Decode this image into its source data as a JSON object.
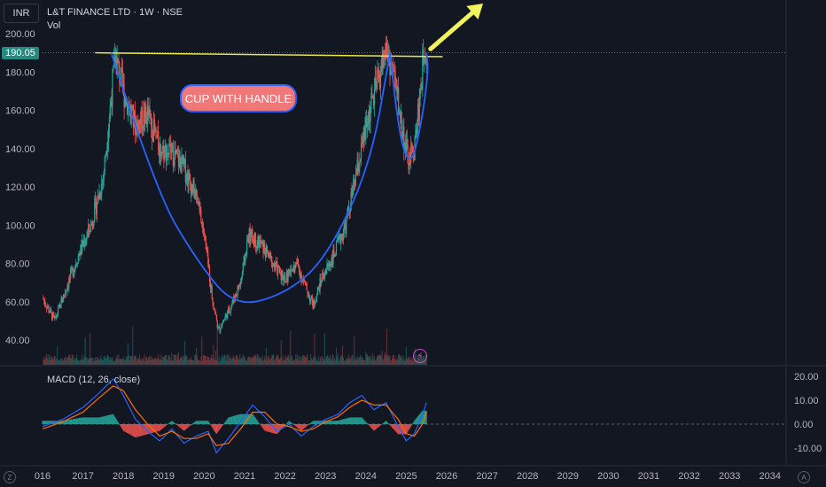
{
  "header": {
    "title": "L&T FINANCE LTD · 1W · NSE",
    "vol_label": "Vol",
    "currency": "INR",
    "last_price": "190.05"
  },
  "annotation": {
    "text": "CUP WITH HANDLE"
  },
  "macd": {
    "label": "MACD (12, 26, close)"
  },
  "footer": {
    "logo": "Z",
    "auto": "A"
  },
  "colors": {
    "background": "#131722",
    "up": "#26a69a",
    "down": "#ef5350",
    "cup_line": "#2962ff",
    "resistance_line": "#e8e84a",
    "arrow": "#f2f25c",
    "macd_line": "#2962ff",
    "signal_line": "#ff6d00",
    "annotation_fill": "#f07878"
  },
  "chart_data": [
    {
      "type": "candlestick",
      "title": "L&T FINANCE LTD · 1W · NSE",
      "y_ticks": [
        "200.00",
        "180.00",
        "160.00",
        "140.00",
        "120.00",
        "100.00",
        "80.00",
        "60.00",
        "40.00"
      ],
      "ylim": [
        33,
        210
      ],
      "x_ticks": [
        "016",
        "2017",
        "2018",
        "2019",
        "2020",
        "2021",
        "2022",
        "2023",
        "2024",
        "2025",
        "2026",
        "2027",
        "2028",
        "2029",
        "2030",
        "2031",
        "2032",
        "2033",
        "2034"
      ],
      "price_path": [
        [
          2016.0,
          62
        ],
        [
          2016.3,
          50
        ],
        [
          2016.6,
          68
        ],
        [
          2016.9,
          85
        ],
        [
          2017.2,
          100
        ],
        [
          2017.5,
          125
        ],
        [
          2017.8,
          188
        ],
        [
          2018.0,
          170
        ],
        [
          2018.3,
          152
        ],
        [
          2018.6,
          158
        ],
        [
          2018.9,
          140
        ],
        [
          2019.2,
          138
        ],
        [
          2019.5,
          130
        ],
        [
          2019.8,
          115
        ],
        [
          2020.0,
          95
        ],
        [
          2020.2,
          62
        ],
        [
          2020.35,
          45
        ],
        [
          2020.6,
          55
        ],
        [
          2020.9,
          70
        ],
        [
          2021.1,
          95
        ],
        [
          2021.4,
          90
        ],
        [
          2021.7,
          80
        ],
        [
          2022.0,
          72
        ],
        [
          2022.3,
          80
        ],
        [
          2022.5,
          68
        ],
        [
          2022.7,
          58
        ],
        [
          2022.9,
          72
        ],
        [
          2023.2,
          84
        ],
        [
          2023.5,
          100
        ],
        [
          2023.8,
          130
        ],
        [
          2024.1,
          160
        ],
        [
          2024.3,
          175
        ],
        [
          2024.5,
          192
        ],
        [
          2024.7,
          178
        ],
        [
          2024.9,
          150
        ],
        [
          2025.05,
          133
        ],
        [
          2025.2,
          140
        ],
        [
          2025.35,
          170
        ],
        [
          2025.45,
          195
        ],
        [
          2025.5,
          190
        ]
      ],
      "resistance_line": {
        "start": [
          2017.3,
          190
        ],
        "end": [
          2025.9,
          188
        ]
      },
      "cup": [
        [
          2017.7,
          190
        ],
        [
          2018.8,
          118
        ],
        [
          2019.8,
          82
        ],
        [
          2020.75,
          57
        ],
        [
          2022.0,
          64
        ],
        [
          2023.0,
          82
        ],
        [
          2024.1,
          130
        ],
        [
          2024.6,
          190
        ]
      ],
      "handle": [
        [
          2024.6,
          190
        ],
        [
          2024.8,
          148
        ],
        [
          2025.1,
          130
        ],
        [
          2025.35,
          150
        ],
        [
          2025.55,
          180
        ],
        [
          2025.5,
          190
        ]
      ],
      "breakout_arrow": {
        "from": [
          2025.6,
          192
        ],
        "to": [
          2027.0,
          215
        ]
      }
    },
    {
      "type": "line",
      "title": "MACD (12, 26, close)",
      "y_ticks": [
        "20.00",
        "10.00",
        "0.00",
        "-10.00"
      ],
      "ylim": [
        -14,
        22
      ],
      "series": [
        {
          "points": [
            [
              2016.0,
              -1
            ],
            [
              2016.5,
              2
            ],
            [
              2017.0,
              7
            ],
            [
              2017.4,
              13
            ],
            [
              2017.75,
              19
            ],
            [
              2018.0,
              12
            ],
            [
              2018.3,
              2
            ],
            [
              2018.6,
              -3
            ],
            [
              2018.9,
              -7
            ],
            [
              2019.2,
              -2
            ],
            [
              2019.5,
              -8
            ],
            [
              2019.8,
              -5
            ],
            [
              2020.1,
              -3
            ],
            [
              2020.3,
              -12
            ],
            [
              2020.6,
              -6
            ],
            [
              2020.9,
              1
            ],
            [
              2021.2,
              8
            ],
            [
              2021.5,
              3
            ],
            [
              2021.8,
              -3
            ],
            [
              2022.1,
              0
            ],
            [
              2022.4,
              -5
            ],
            [
              2022.7,
              -1
            ],
            [
              2023.0,
              2
            ],
            [
              2023.3,
              4
            ],
            [
              2023.6,
              9
            ],
            [
              2023.9,
              12
            ],
            [
              2024.2,
              6
            ],
            [
              2024.5,
              9
            ],
            [
              2024.8,
              -1
            ],
            [
              2025.0,
              -7
            ],
            [
              2025.2,
              -4
            ],
            [
              2025.4,
              4
            ],
            [
              2025.5,
              9
            ]
          ]
        },
        {
          "points": [
            [
              2016.0,
              -2
            ],
            [
              2016.5,
              1
            ],
            [
              2017.0,
              5
            ],
            [
              2017.4,
              11
            ],
            [
              2017.75,
              16
            ],
            [
              2018.0,
              14
            ],
            [
              2018.3,
              6
            ],
            [
              2018.6,
              0
            ],
            [
              2018.9,
              -5
            ],
            [
              2019.2,
              -3
            ],
            [
              2019.5,
              -6
            ],
            [
              2019.8,
              -6
            ],
            [
              2020.1,
              -4
            ],
            [
              2020.3,
              -9
            ],
            [
              2020.6,
              -8
            ],
            [
              2020.9,
              -2
            ],
            [
              2021.2,
              5
            ],
            [
              2021.5,
              5
            ],
            [
              2021.8,
              0
            ],
            [
              2022.1,
              -1
            ],
            [
              2022.4,
              -3
            ],
            [
              2022.7,
              -2
            ],
            [
              2023.0,
              1
            ],
            [
              2023.3,
              3
            ],
            [
              2023.6,
              7
            ],
            [
              2023.9,
              10
            ],
            [
              2024.2,
              8
            ],
            [
              2024.5,
              8
            ],
            [
              2024.8,
              2
            ],
            [
              2025.0,
              -4
            ],
            [
              2025.2,
              -5
            ],
            [
              2025.4,
              0
            ],
            [
              2025.5,
              5
            ]
          ]
        }
      ]
    }
  ]
}
